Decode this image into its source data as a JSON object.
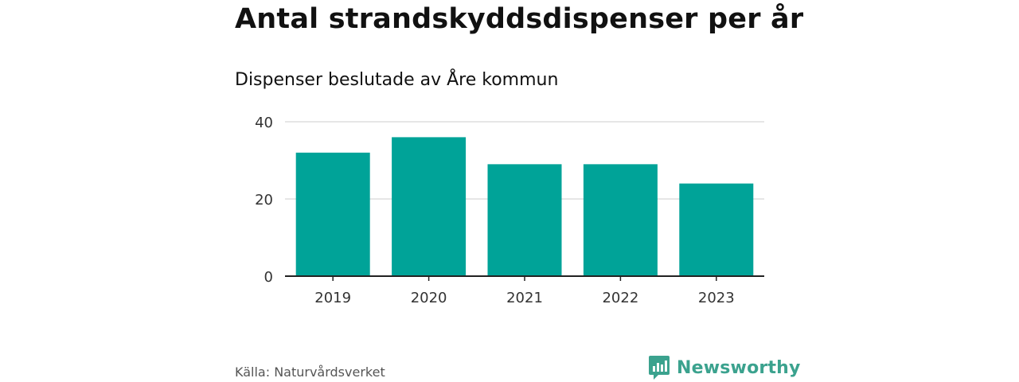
{
  "chart_data": {
    "type": "bar",
    "title": "Antal strandskyddsdispenser per år",
    "subtitle": "Dispenser beslutade av Åre kommun",
    "categories": [
      "2019",
      "2020",
      "2021",
      "2022",
      "2023"
    ],
    "values": [
      32,
      36,
      29,
      29,
      24
    ],
    "xlabel": "",
    "ylabel": "",
    "ylim": [
      0,
      40
    ],
    "yticks": [
      0,
      20,
      40
    ],
    "grid": true,
    "color": "#00a398"
  },
  "footer": {
    "source": "Källa: Naturvårdsverket",
    "brand": "Newsworthy",
    "brand_color": "#3ba28e"
  }
}
